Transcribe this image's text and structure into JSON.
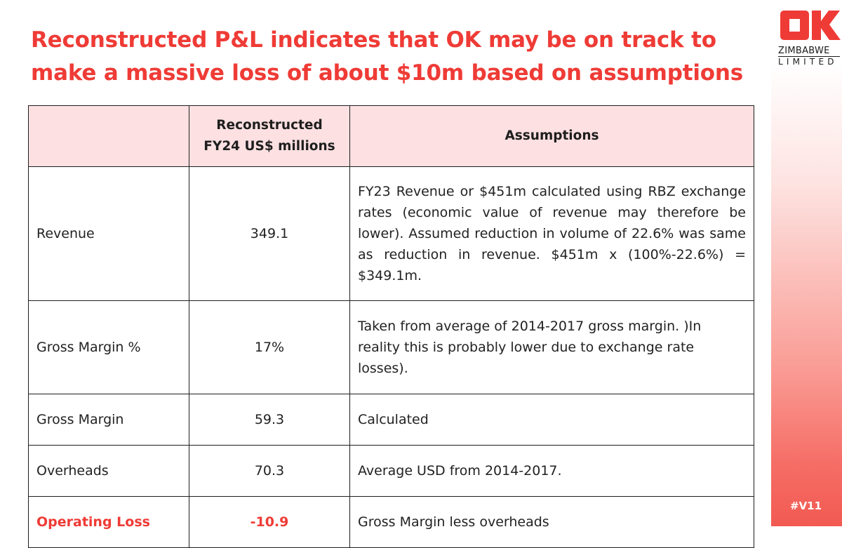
{
  "title": {
    "line1": "Reconstructed P&L indicates that OK may be on track to",
    "line2": "make a massive loss of about $10m based on assumptions"
  },
  "logo": {
    "mark": "OK",
    "line1": "ZIMBABWE",
    "line2": "LIMITED"
  },
  "tag": "#V11",
  "colors": {
    "accent": "#ef3b36",
    "header_bg": "#fde0e2"
  },
  "table": {
    "headers": {
      "col1": "",
      "col2_line1": "Reconstructed",
      "col2_line2": "FY24 US$ millions",
      "col3": "Assumptions"
    },
    "rows": [
      {
        "label": "Revenue",
        "value": "349.1",
        "assumption": "FY23 Revenue or $451m calculated using RBZ exchange rates (economic value of revenue may therefore be lower). Assumed reduction in volume of 22.6% was same as reduction in revenue. $451m x (100%-22.6%) = $349.1m."
      },
      {
        "label": "Gross Margin %",
        "value": "17%",
        "assumption": "Taken from average of 2014-2017 gross margin. )In reality this is probably lower due to exchange rate losses)."
      },
      {
        "label": "Gross Margin",
        "value": "59.3",
        "assumption": "Calculated"
      },
      {
        "label": "Overheads",
        "value": "70.3",
        "assumption": "Average USD from 2014-2017."
      },
      {
        "label": "Operating Loss",
        "value": "-10.9",
        "assumption": "Gross Margin less overheads"
      }
    ]
  }
}
